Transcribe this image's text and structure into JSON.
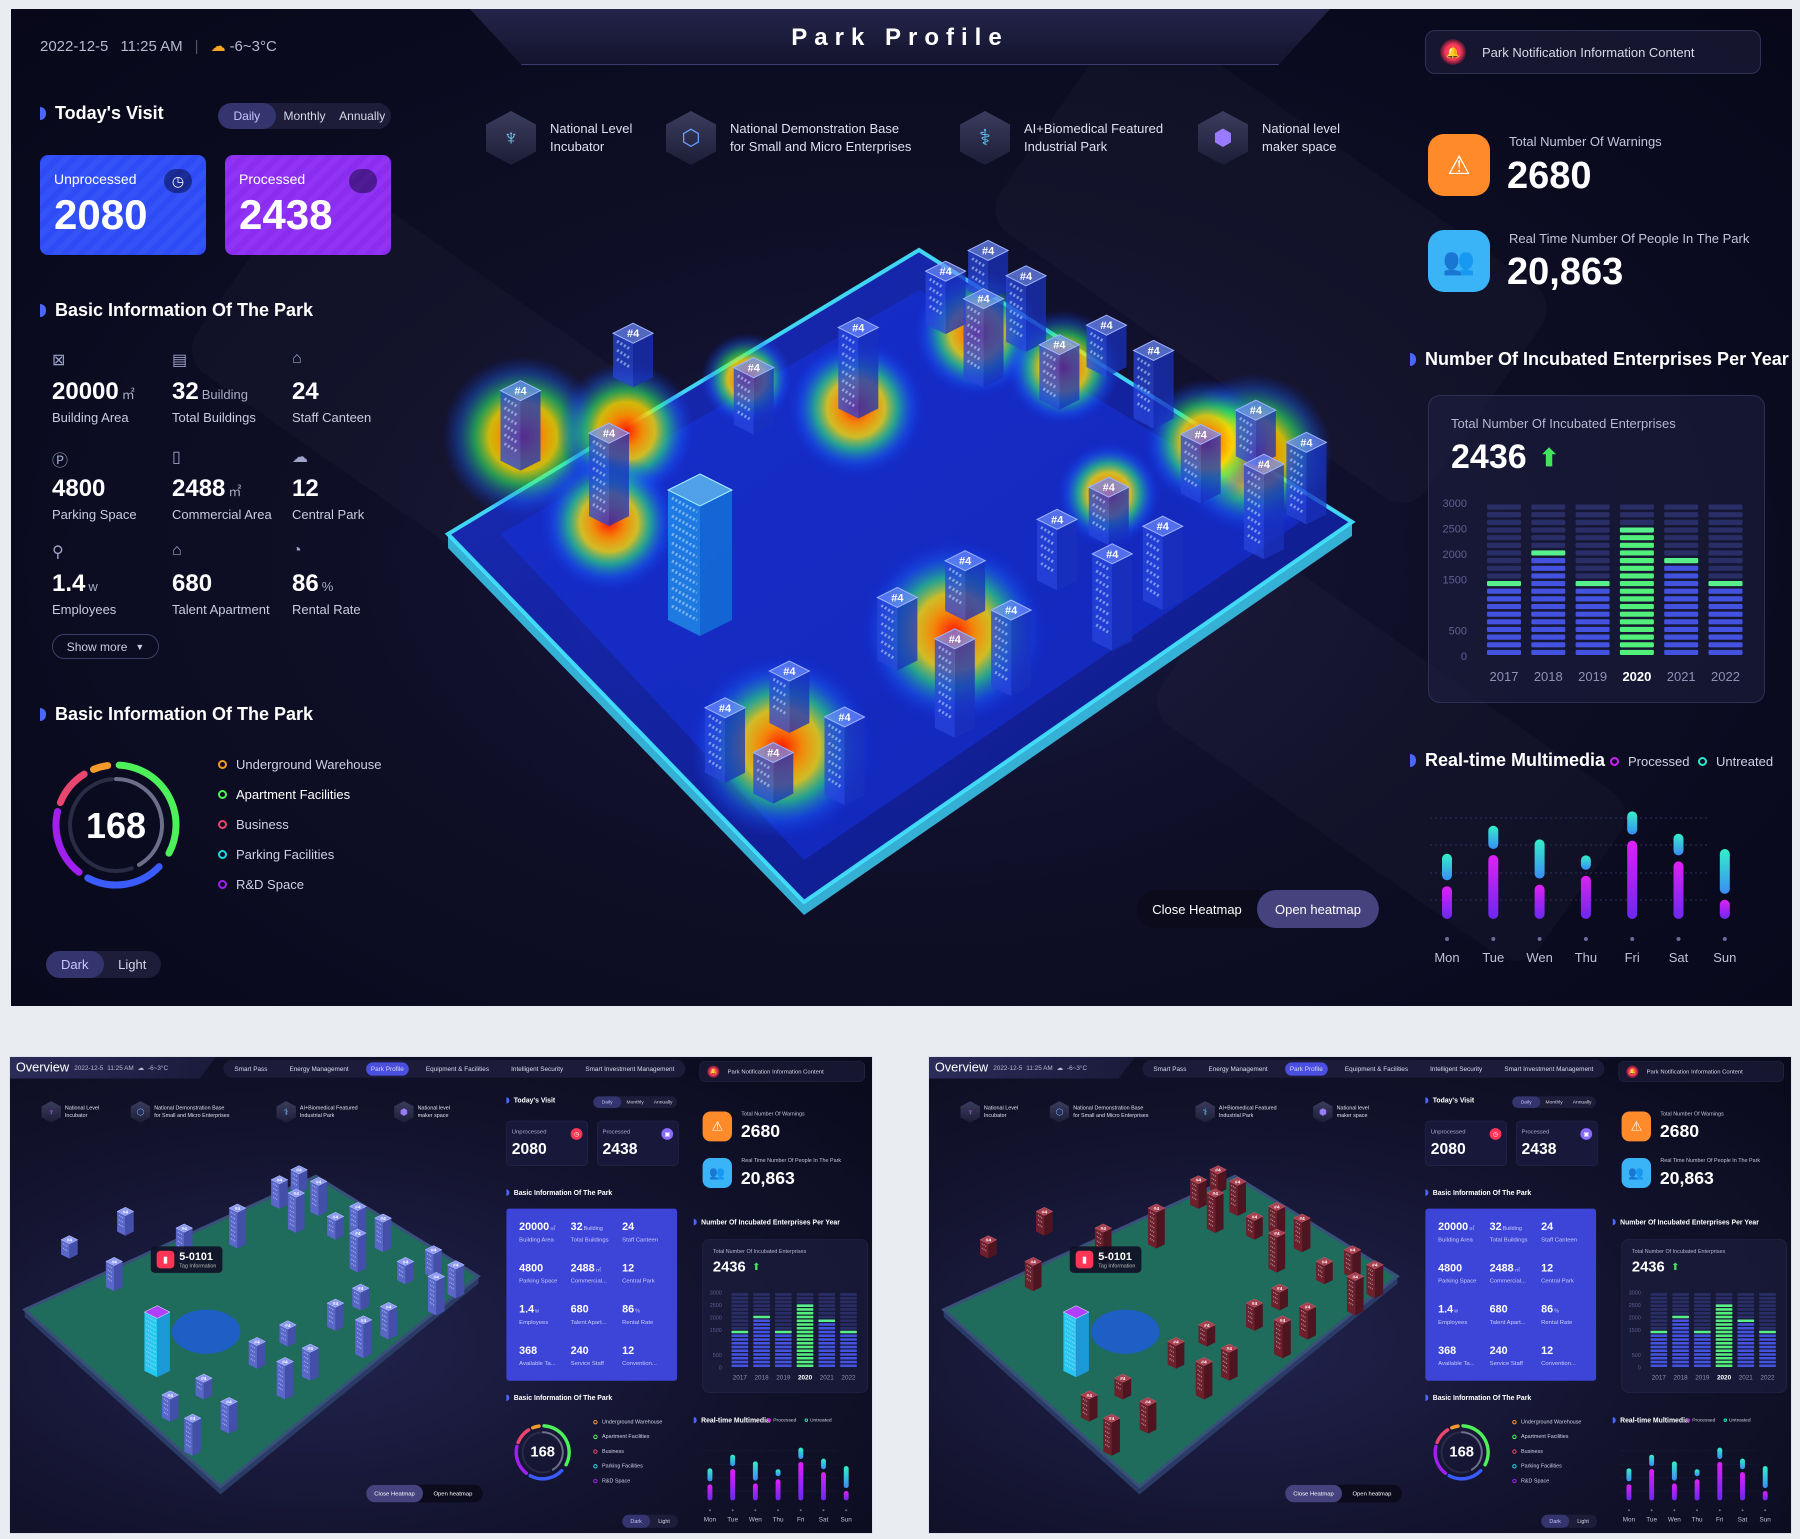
{
  "header": {
    "date": "2022-12-5",
    "time": "11:25 AM",
    "weather_icon": "partly-cloudy-icon",
    "weather": "-6~3°C",
    "title": "Park Profile",
    "notification": "Park Notification Information Content"
  },
  "visit": {
    "title": "Today's Visit",
    "tabs": [
      "Daily",
      "Monthly",
      "Annually"
    ],
    "active_tab": "Daily",
    "unprocessed": {
      "label": "Unprocessed",
      "value": "2080",
      "color": "#2f4bf5"
    },
    "processed": {
      "label": "Processed",
      "value": "2438",
      "color": "#8a2df0"
    }
  },
  "basic_info": {
    "title": "Basic Information Of The Park",
    "items": [
      {
        "icon": "area-icon",
        "value": "20000",
        "unit": "㎡",
        "label": "Building Area"
      },
      {
        "icon": "building-icon",
        "value": "32",
        "unit": "Building",
        "label": "Total Buildings"
      },
      {
        "icon": "canteen-bell-icon",
        "value": "24",
        "unit": "",
        "label": "Staff Canteen"
      },
      {
        "icon": "parking-icon",
        "value": "4800",
        "unit": "",
        "label": "Parking Space"
      },
      {
        "icon": "map-icon",
        "value": "2488",
        "unit": "㎡",
        "label": "Commercial Area"
      },
      {
        "icon": "tree-icon",
        "value": "12",
        "unit": "",
        "label": "Central Park"
      },
      {
        "icon": "person-icon",
        "value": "1.4",
        "unit": "w",
        "label": "Employees"
      },
      {
        "icon": "house-icon",
        "value": "680",
        "unit": "",
        "label": "Talent Apartment"
      },
      {
        "icon": "pie-icon",
        "value": "86",
        "unit": "%",
        "label": "Rental Rate"
      }
    ],
    "show_more": "Show more"
  },
  "facilities": {
    "title": "Basic Information Of The Park",
    "total": "168",
    "legend": [
      {
        "label": "Underground Warehouse",
        "color": "#f59a2b"
      },
      {
        "label": "Apartment Facilities",
        "color": "#4ef05a"
      },
      {
        "label": "Business",
        "color": "#e8466e"
      },
      {
        "label": "Parking Facilities",
        "color": "#1fd8e0"
      },
      {
        "label": "R&D Space",
        "color": "#a020f0"
      }
    ]
  },
  "theme": {
    "options": [
      "Dark",
      "Light"
    ],
    "active": "Dark"
  },
  "badges": [
    {
      "icon": "incubator-icon",
      "line1": "National Level",
      "line2": "Incubator"
    },
    {
      "icon": "demonstration-base-icon",
      "line1": "National Demonstration Base",
      "line2": "for Small and Micro Enterprises"
    },
    {
      "icon": "biomedical-icon",
      "line1": "AI+Biomedical Featured",
      "line2": "Industrial Park"
    },
    {
      "icon": "maker-space-icon",
      "line1": "National level",
      "line2": "maker space"
    }
  ],
  "heatmap": {
    "close": "Close Heatmap",
    "open": "Open heatmap",
    "active": "Open heatmap",
    "building_label": "#4"
  },
  "stats": {
    "warnings": {
      "label": "Total Number Of Warnings",
      "value": "2680",
      "color": "#ff8a2a"
    },
    "people": {
      "label": "Real Time Number Of People In The Park",
      "value": "20,863",
      "color": "#3ab4f6"
    }
  },
  "chart_data": [
    {
      "type": "bar",
      "title": "Number Of Incubated Enterprises Per Year",
      "subtitle": "Total Number Of Incubated Enterprises",
      "total": "2436",
      "trend": "up",
      "categories": [
        "2017",
        "2018",
        "2019",
        "2020",
        "2021",
        "2022"
      ],
      "values": [
        1500,
        2100,
        1500,
        2500,
        2000,
        1500
      ],
      "highlight": "2020",
      "yticks": [
        "3000",
        "2500",
        "2000",
        "1500",
        "500",
        "0"
      ],
      "ylim": [
        0,
        3000
      ]
    },
    {
      "type": "bar",
      "title": "Real-time Multimedia",
      "categories": [
        "Mon",
        "Tue",
        "Wen",
        "Thu",
        "Fri",
        "Sat",
        "Sun"
      ],
      "series": [
        {
          "name": "Processed",
          "color": "#d020f5",
          "values": [
            41,
            80,
            43,
            54,
            98,
            72,
            24
          ]
        },
        {
          "name": "Untreated",
          "color": "#2ee6c8",
          "values": [
            33,
            29,
            49,
            18,
            29,
            27,
            56
          ]
        }
      ]
    }
  ],
  "overview": {
    "title": "Overview",
    "nav": [
      "Smart Pass",
      "Energy Management",
      "Park Profile",
      "Equipment & Facilities",
      "Intelligent Security",
      "Smart Investment Management"
    ],
    "active_nav": "Park Profile",
    "basic_items": [
      {
        "value": "20000",
        "unit": "㎡",
        "label": "Building Area"
      },
      {
        "value": "32",
        "unit": "Building",
        "label": "Total Buildings"
      },
      {
        "value": "24",
        "unit": "",
        "label": "Staff Canteen"
      },
      {
        "value": "4800",
        "unit": "",
        "label": "Parking Space"
      },
      {
        "value": "2488",
        "unit": "㎡",
        "label": "Commercial..."
      },
      {
        "value": "12",
        "unit": "",
        "label": "Central Park"
      },
      {
        "value": "1.4",
        "unit": "w",
        "label": "Employees"
      },
      {
        "value": "680",
        "unit": "",
        "label": "Talent Apart..."
      },
      {
        "value": "86",
        "unit": "%",
        "label": "Rental Rate"
      },
      {
        "value": "368",
        "unit": "",
        "label": "Available Ta..."
      },
      {
        "value": "240",
        "unit": "",
        "label": "Service Staff"
      },
      {
        "value": "12",
        "unit": "",
        "label": "Convention..."
      }
    ],
    "heatmap_active": "Close Heatmap"
  },
  "thumbnails": [
    {
      "variant": "blue-buildings",
      "building_color": "#6f7ee0",
      "tag_id": "5-0101",
      "tag_info": "Tag Information"
    },
    {
      "variant": "red-buildings",
      "building_color": "#8e2c38",
      "tag_id": "5-0101",
      "tag_info": "Tag Information"
    }
  ]
}
